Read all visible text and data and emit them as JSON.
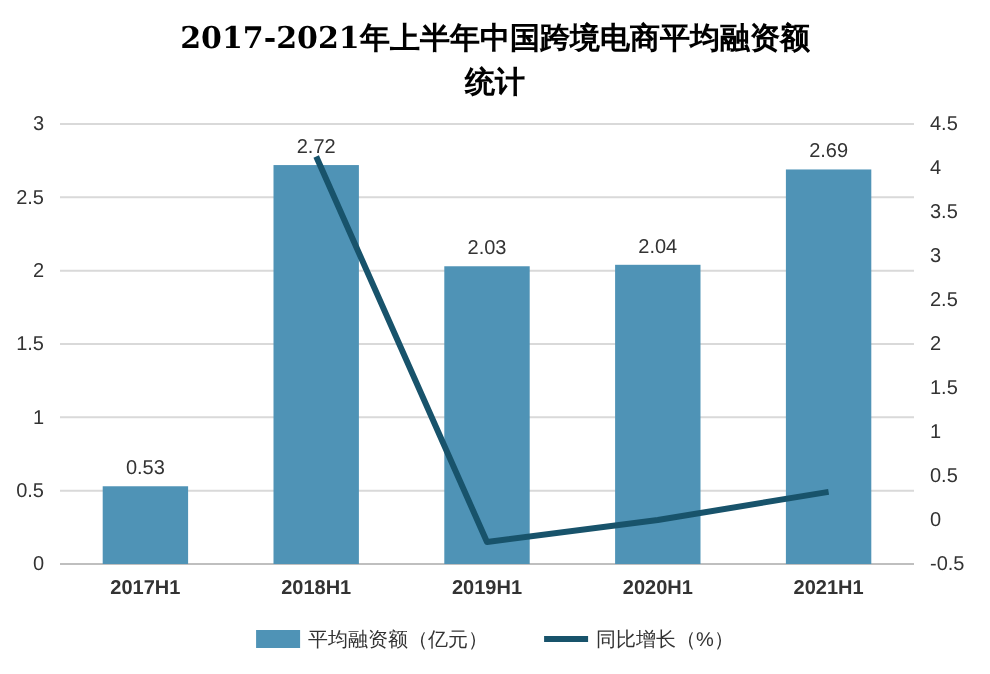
{
  "chart_data": {
    "type": "bar",
    "title": "2017-2021年上半年中国跨境电商平均融资额统计",
    "categories": [
      "2017H1",
      "2018H1",
      "2019H1",
      "2020H1",
      "2021H1"
    ],
    "series": [
      {
        "name": "平均融资额（亿元）",
        "color": "#4f93b6",
        "values": [
          0.53,
          2.72,
          2.03,
          2.04,
          2.69
        ],
        "value_labels": [
          "0.53",
          "2.72",
          "2.03",
          "2.04",
          "2.69"
        ]
      },
      {
        "name": "同比增长（%）",
        "type": "line",
        "axis": "y2",
        "color": "#18536b",
        "values": [
          null,
          4.13,
          -0.25,
          0.0,
          0.32
        ]
      }
    ],
    "ylim": [
      0,
      3
    ],
    "yticks": [
      0,
      0.5,
      1,
      1.5,
      2,
      2.5,
      3
    ],
    "y2lim": [
      -0.5,
      4.5
    ],
    "y2ticks": [
      -0.5,
      0,
      0.5,
      1,
      1.5,
      2,
      2.5,
      3,
      3.5,
      4,
      4.5
    ],
    "grid": "y",
    "legend": "bottom",
    "marker": "none"
  }
}
